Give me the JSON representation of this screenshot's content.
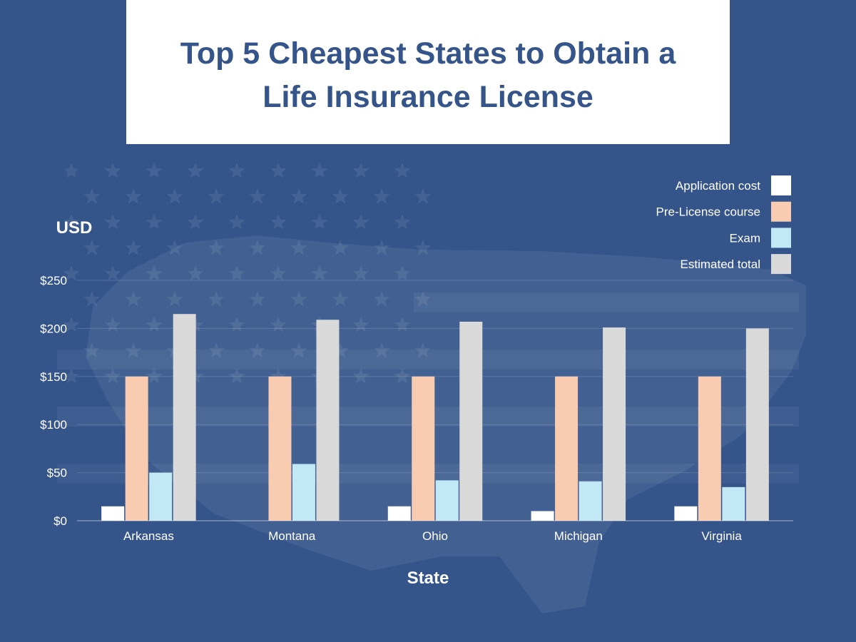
{
  "title": "Top 5 Cheapest States to Obtain a Life Insurance License",
  "colors": {
    "background": "#34548a",
    "title_box": "#ffffff",
    "title_text": "#34548a",
    "application_cost": "#ffffff",
    "pre_license_course": "#f9cbb0",
    "exam": "#c2e8f6",
    "estimated_total": "#d9d9d9"
  },
  "chart_data": {
    "type": "bar",
    "title": "Top 5 Cheapest States to Obtain a Life Insurance License",
    "xlabel": "State",
    "ylabel": "USD",
    "categories": [
      "Arkansas",
      "Montana",
      "Ohio",
      "Michigan",
      "Virginia"
    ],
    "ylim": [
      0,
      250
    ],
    "yticks": [
      0,
      50,
      100,
      150,
      200,
      250
    ],
    "ytick_labels": [
      "$0",
      "$50",
      "$100",
      "$150",
      "$200",
      "$250"
    ],
    "grid": true,
    "legend_position": "top-right",
    "series": [
      {
        "name": "Application cost",
        "color": "#ffffff",
        "values": [
          15,
          0,
          15,
          10,
          15
        ]
      },
      {
        "name": "Pre-License course",
        "color": "#f9cbb0",
        "values": [
          150,
          150,
          150,
          150,
          150
        ]
      },
      {
        "name": "Exam",
        "color": "#c2e8f6",
        "values": [
          50,
          59,
          42,
          41,
          35
        ]
      },
      {
        "name": "Estimated total",
        "color": "#d9d9d9",
        "values": [
          215,
          209,
          207,
          201,
          200
        ]
      }
    ]
  }
}
